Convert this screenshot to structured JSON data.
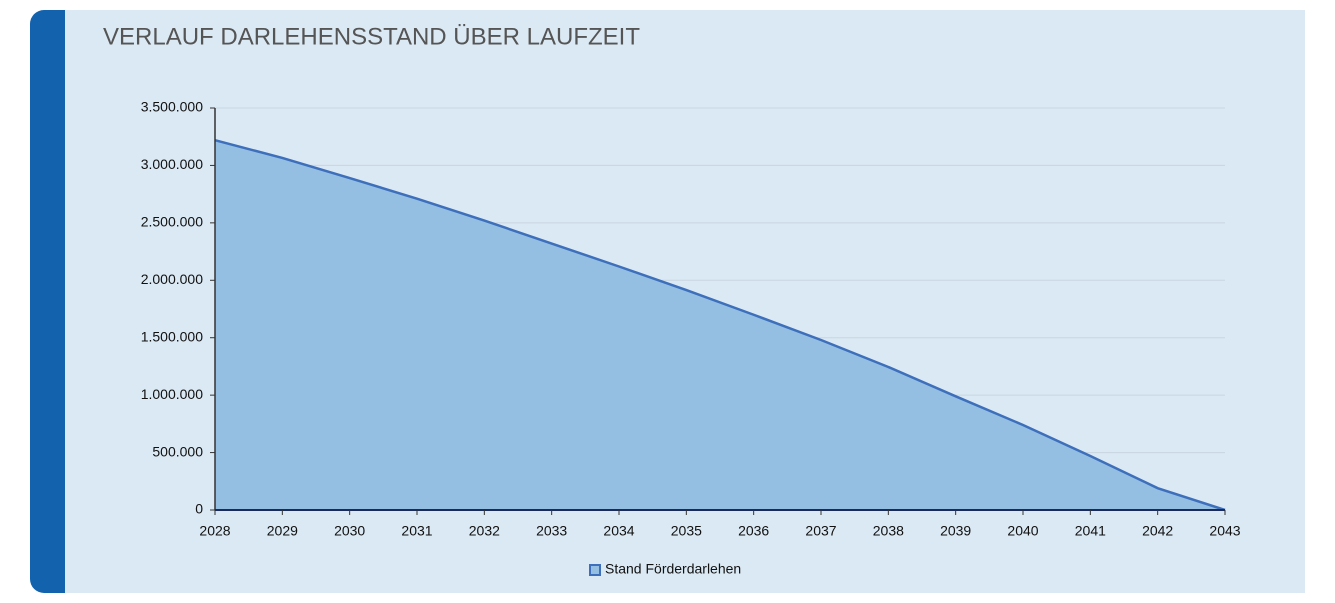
{
  "chart_data": {
    "type": "area",
    "title": "VERLAUF DARLEHENSSTAND ÜBER LAUFZEIT",
    "categories": [
      "2028",
      "2029",
      "2030",
      "2031",
      "2032",
      "2033",
      "2034",
      "2035",
      "2036",
      "2037",
      "2038",
      "2039",
      "2040",
      "2041",
      "2042",
      "2043"
    ],
    "series": [
      {
        "name": "Stand Förderdarlehen",
        "color": "#3d6fbb",
        "fill": "#94bfe3",
        "values": [
          3220000,
          3065000,
          2890000,
          2710000,
          2520000,
          2320000,
          2120000,
          1915000,
          1700000,
          1480000,
          1245000,
          990000,
          740000,
          470000,
          190000,
          0
        ]
      }
    ],
    "ylim": [
      0,
      3500000
    ],
    "yticks": [
      0,
      {
        "value": 500000,
        "label": "500.000"
      },
      {
        "value": 1000000,
        "label": "1.000.000"
      },
      {
        "value": 1500000,
        "label": "1.500.000"
      },
      {
        "value": 2000000,
        "label": "2.000.000"
      },
      {
        "value": 2500000,
        "label": "2.500.000"
      },
      {
        "value": 3000000,
        "label": "3.000.000"
      },
      {
        "value": 3500000,
        "label": "3.500.000"
      }
    ],
    "grid": true,
    "legend": "bottom"
  }
}
